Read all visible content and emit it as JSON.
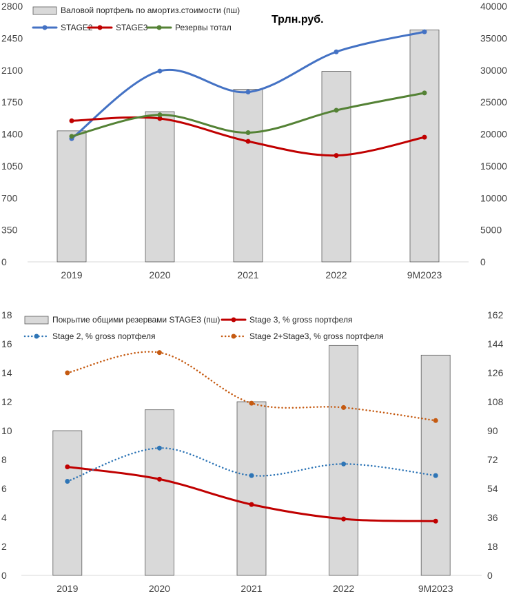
{
  "chart_data": [
    {
      "type": "bar",
      "annotation": "Трлн.руб.",
      "categories": [
        "2019",
        "2020",
        "2021",
        "2022",
        "9M2023"
      ],
      "y_left": {
        "min": 0,
        "max": 2800,
        "ticks": [
          0,
          350,
          700,
          1050,
          1400,
          1750,
          2100,
          2450,
          2800
        ]
      },
      "y_right": {
        "min": 0,
        "max": 40000,
        "ticks": [
          0,
          5000,
          10000,
          15000,
          20000,
          25000,
          30000,
          35000,
          40000
        ]
      },
      "bars": {
        "name": "Валовой портфель по амортиз.стоимости (пш)",
        "axis": "right",
        "color": "#d9d9d9",
        "values": [
          20500,
          23500,
          27000,
          29800,
          36300
        ]
      },
      "series": [
        {
          "name": "STAGE2",
          "axis": "left",
          "color": "#4472c4",
          "style": "solid",
          "values": [
            1350,
            2090,
            1860,
            2300,
            2520
          ]
        },
        {
          "name": "STAGE3",
          "axis": "left",
          "color": "#c00000",
          "style": "solid",
          "values": [
            1545,
            1570,
            1320,
            1165,
            1365
          ]
        },
        {
          "name": "Резервы тотал",
          "axis": "left",
          "color": "#548235",
          "style": "solid",
          "values": [
            1375,
            1610,
            1415,
            1660,
            1850
          ]
        }
      ],
      "legend_placement": "top-left",
      "grid": false
    },
    {
      "type": "bar",
      "categories": [
        "2019",
        "2020",
        "2021",
        "2022",
        "9M2023"
      ],
      "y_left": {
        "min": 0,
        "max": 18,
        "ticks": [
          0,
          2,
          4,
          6,
          8,
          10,
          12,
          14,
          16,
          18
        ]
      },
      "y_right": {
        "min": 0,
        "max": 162,
        "ticks": [
          0,
          18,
          36,
          54,
          72,
          90,
          108,
          126,
          144,
          162
        ]
      },
      "bars": {
        "name": "Покрытие общими резервами STAGE3 (пш)",
        "axis": "right",
        "color": "#d9d9d9",
        "values": [
          90,
          103,
          108,
          143,
          137
        ]
      },
      "series": [
        {
          "name": "Stage 3, % gross портфеля",
          "axis": "left",
          "color": "#c00000",
          "style": "solid",
          "values": [
            7.5,
            6.65,
            4.9,
            3.9,
            3.75
          ]
        },
        {
          "name": "Stage 2, % gross портфеля",
          "axis": "left",
          "color": "#2e75b6",
          "style": "dotted",
          "values": [
            6.5,
            8.8,
            6.9,
            7.7,
            6.9
          ]
        },
        {
          "name": "Stage 2+Stage3, % gross портфеля",
          "axis": "left",
          "color": "#c55a11",
          "style": "dotted",
          "values": [
            14.0,
            15.4,
            11.9,
            11.6,
            10.7
          ]
        }
      ],
      "legend_placement": "top",
      "grid": false
    }
  ]
}
